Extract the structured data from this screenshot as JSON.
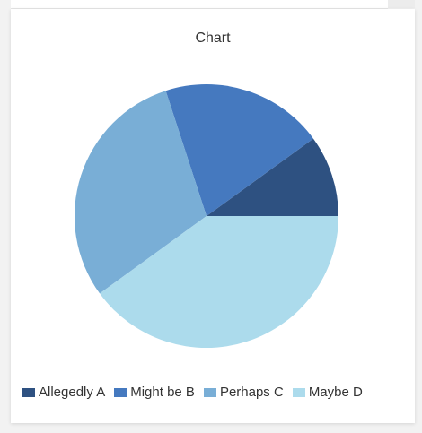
{
  "chart_data": {
    "type": "pie",
    "title": "Chart",
    "categories": [
      "Allegedly A",
      "Might be B",
      "Perhaps C",
      "Maybe D"
    ],
    "values": [
      10,
      20,
      30,
      40
    ],
    "colors": [
      "#2e5181",
      "#4579bf",
      "#79aed6",
      "#acdbec"
    ],
    "legend_position": "bottom",
    "start": "3 o'clock",
    "direction": "counterclockwise"
  }
}
